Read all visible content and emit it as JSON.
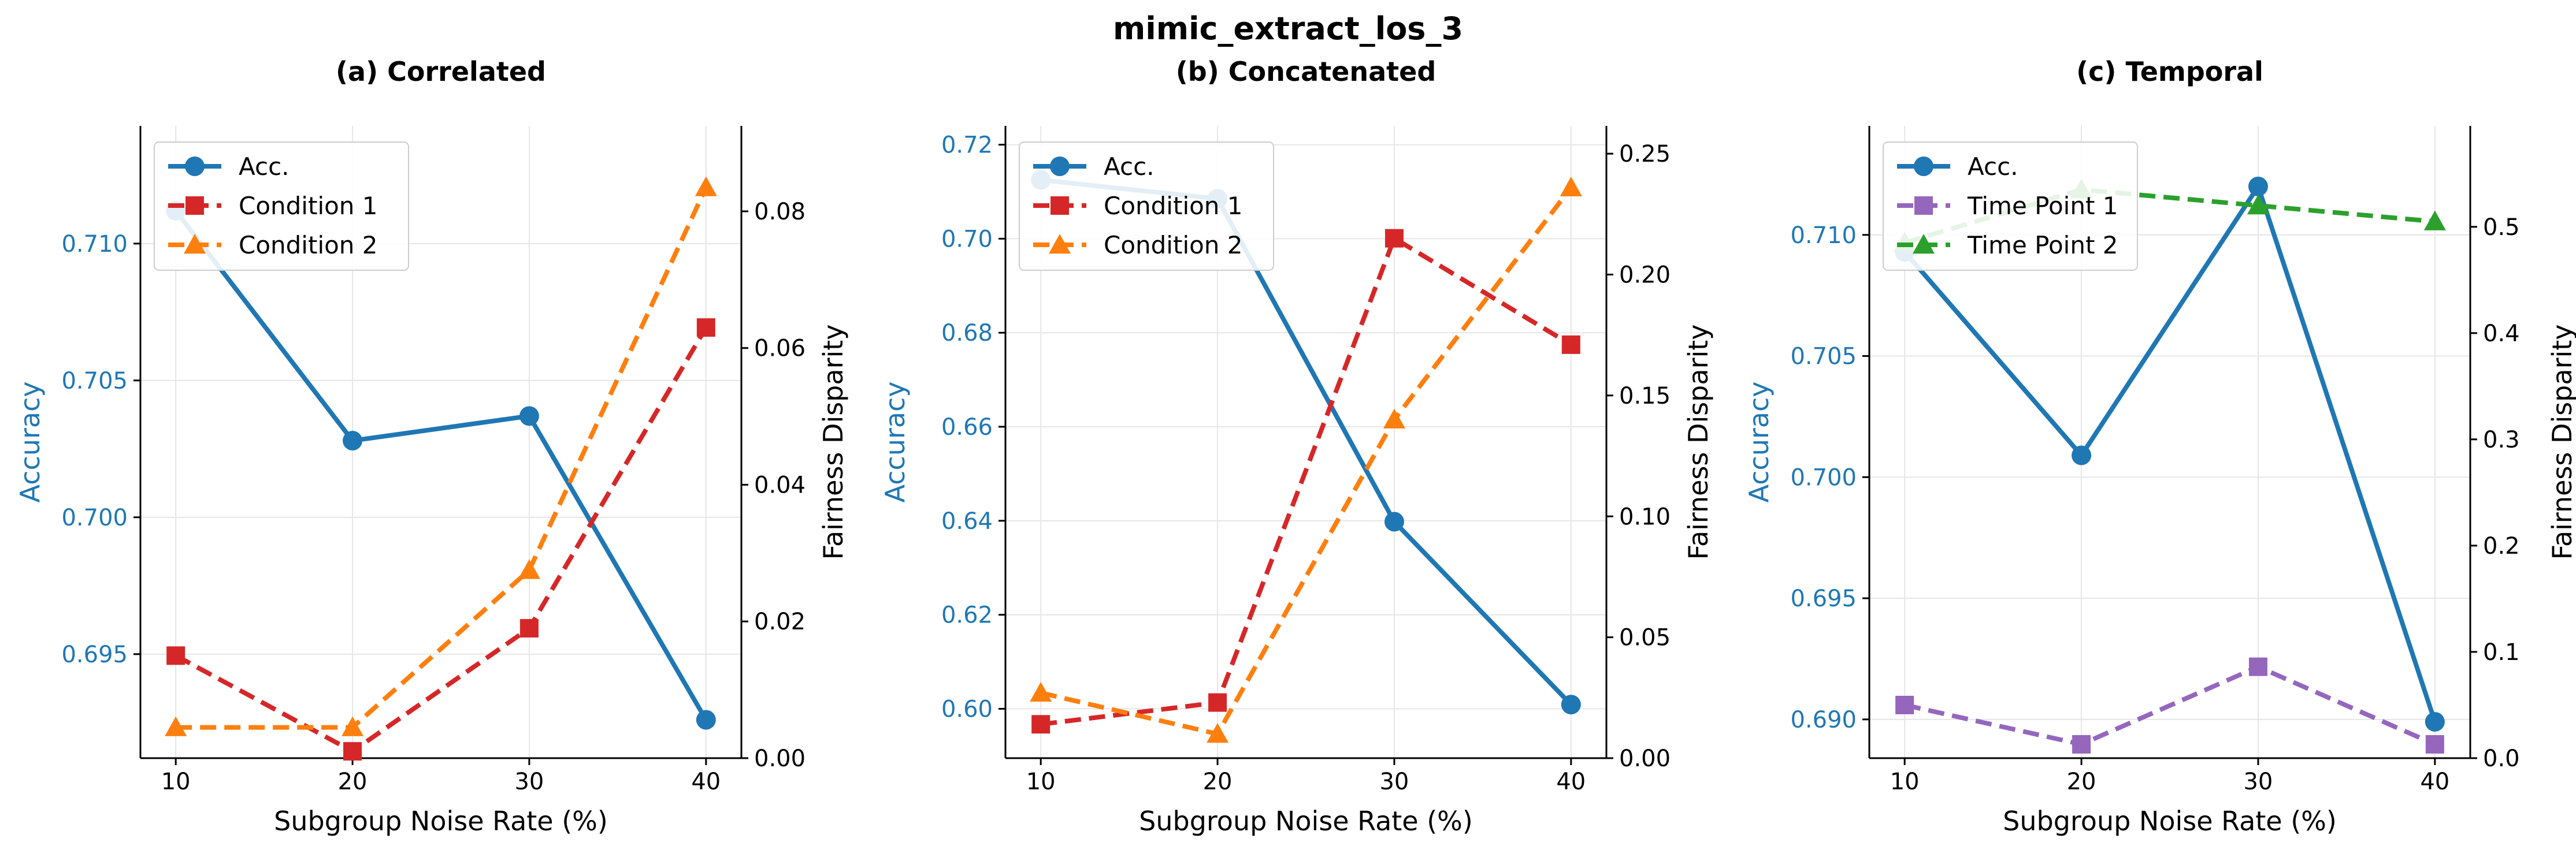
{
  "figure": {
    "suptitle": "mimic_extract_los_3"
  },
  "colors": {
    "accuracy": "#1f77b4",
    "condition1": "#d62728",
    "condition2": "#ff7f0e",
    "timepoint1": "#9467bd",
    "timepoint2": "#2ca02c",
    "grid": "#e6e6e6",
    "axis": "#000000"
  },
  "chart_data": [
    {
      "type": "line",
      "title": "(a) Correlated",
      "xlabel": "Subgroup Noise Rate (%)",
      "ylabel_left": "Accuracy",
      "ylabel_right": "Fairness Disparity",
      "x": [
        10,
        20,
        30,
        40
      ],
      "xlim": [
        8,
        42
      ],
      "ylim_left": [
        0.6912,
        0.7143
      ],
      "ylim_right": [
        0,
        0.0925
      ],
      "yticks_left": [
        0.695,
        0.7,
        0.705,
        0.71
      ],
      "ytick_labels_left": [
        "0.695",
        "0.700",
        "0.705",
        "0.710"
      ],
      "yticks_right": [
        0.0,
        0.02,
        0.04,
        0.06,
        0.08
      ],
      "ytick_labels_right": [
        "0.00",
        "0.02",
        "0.04",
        "0.06",
        "0.08"
      ],
      "grid": true,
      "legend_position": "upper-left",
      "series": [
        {
          "name": "Acc.",
          "axis": "left",
          "values": [
            0.7112,
            0.7028,
            0.7037,
            0.6926
          ],
          "color_key": "accuracy",
          "marker": "circle",
          "dashed": false
        },
        {
          "name": "Condition 1",
          "axis": "right",
          "values": [
            0.015,
            0.001,
            0.019,
            0.063
          ],
          "color_key": "condition1",
          "marker": "square",
          "dashed": true
        },
        {
          "name": "Condition 2",
          "axis": "right",
          "values": [
            0.0045,
            0.0045,
            0.0275,
            0.0835
          ],
          "color_key": "condition2",
          "marker": "triangle",
          "dashed": true
        }
      ]
    },
    {
      "type": "line",
      "title": "(b) Concatenated",
      "xlabel": "Subgroup Noise Rate (%)",
      "ylabel_left": "Accuracy",
      "ylabel_right": "Fairness Disparity",
      "x": [
        10,
        20,
        30,
        40
      ],
      "xlim": [
        8,
        42
      ],
      "ylim_left": [
        0.5895,
        0.724
      ],
      "ylim_right": [
        0,
        0.2615
      ],
      "yticks_left": [
        0.6,
        0.62,
        0.64,
        0.66,
        0.68,
        0.7,
        0.72
      ],
      "ytick_labels_left": [
        "0.60",
        "0.62",
        "0.64",
        "0.66",
        "0.68",
        "0.70",
        "0.72"
      ],
      "yticks_right": [
        0.0,
        0.05,
        0.1,
        0.15,
        0.2,
        0.25
      ],
      "ytick_labels_right": [
        "0.00",
        "0.05",
        "0.10",
        "0.15",
        "0.20",
        "0.25"
      ],
      "grid": true,
      "legend_position": "upper-left",
      "series": [
        {
          "name": "Acc.",
          "axis": "left",
          "values": [
            0.7125,
            0.7085,
            0.6398,
            0.6009
          ],
          "color_key": "accuracy",
          "marker": "circle",
          "dashed": false
        },
        {
          "name": "Condition 1",
          "axis": "right",
          "values": [
            0.014,
            0.023,
            0.215,
            0.171
          ],
          "color_key": "condition1",
          "marker": "square",
          "dashed": true
        },
        {
          "name": "Condition 2",
          "axis": "right",
          "values": [
            0.027,
            0.01,
            0.14,
            0.236
          ],
          "color_key": "condition2",
          "marker": "triangle",
          "dashed": true
        }
      ]
    },
    {
      "type": "line",
      "title": "(c) Temporal",
      "xlabel": "Subgroup Noise Rate (%)",
      "ylabel_left": "Accuracy",
      "ylabel_right": "Fairness Disparity",
      "x": [
        10,
        20,
        30,
        40
      ],
      "xlim": [
        8,
        42
      ],
      "ylim_left": [
        0.6884,
        0.7145
      ],
      "ylim_right": [
        0,
        0.595
      ],
      "yticks_left": [
        0.69,
        0.695,
        0.7,
        0.705,
        0.71
      ],
      "ytick_labels_left": [
        "0.690",
        "0.695",
        "0.700",
        "0.705",
        "0.710"
      ],
      "yticks_right": [
        0.0,
        0.1,
        0.2,
        0.3,
        0.4,
        0.5
      ],
      "ytick_labels_right": [
        "0.0",
        "0.1",
        "0.2",
        "0.3",
        "0.4",
        "0.5"
      ],
      "grid": true,
      "legend_position": "upper-left",
      "series": [
        {
          "name": "Acc.",
          "axis": "left",
          "values": [
            0.7093,
            0.7009,
            0.712,
            0.6899
          ],
          "color_key": "accuracy",
          "marker": "circle",
          "dashed": false
        },
        {
          "name": "Time Point 1",
          "axis": "right",
          "values": [
            0.05,
            0.013,
            0.086,
            0.013
          ],
          "color_key": "timepoint1",
          "marker": "square",
          "dashed": true
        },
        {
          "name": "Time Point 2",
          "axis": "right",
          "values": [
            0.485,
            0.535,
            0.52,
            0.505
          ],
          "color_key": "timepoint2",
          "marker": "triangle",
          "dashed": true
        }
      ]
    }
  ]
}
